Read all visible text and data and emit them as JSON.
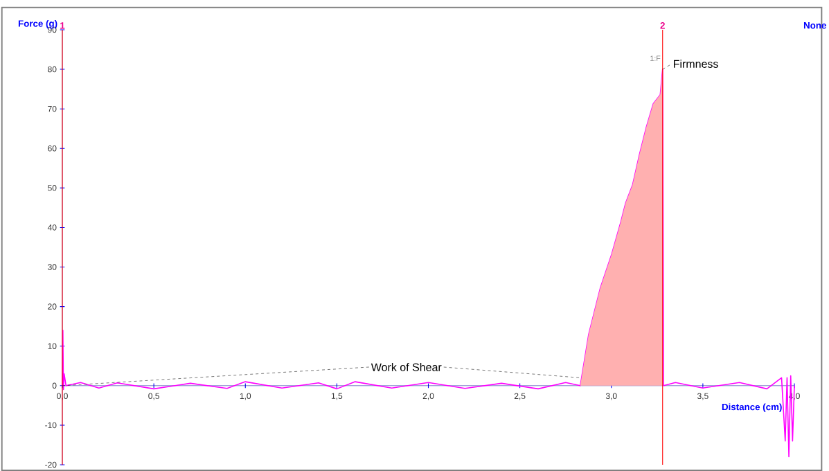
{
  "chart_data": {
    "type": "line",
    "xlabel": "Distance (cm)",
    "ylabel": "Force (g)",
    "xlim": [
      0,
      4.0
    ],
    "ylim": [
      -20,
      90
    ],
    "xticks": [
      {
        "value": 0,
        "label": "0,0"
      },
      {
        "value": 0.5,
        "label": "0,5"
      },
      {
        "value": 1.0,
        "label": "1,0"
      },
      {
        "value": 1.5,
        "label": "1,5"
      },
      {
        "value": 2.0,
        "label": "2,0"
      },
      {
        "value": 2.5,
        "label": "2,5"
      },
      {
        "value": 3.0,
        "label": "3,0"
      },
      {
        "value": 3.5,
        "label": "3,5"
      },
      {
        "value": 4.0,
        "label": "4,0"
      }
    ],
    "yticks": [
      -20,
      -10,
      0,
      10,
      20,
      30,
      40,
      50,
      60,
      70,
      80,
      90
    ],
    "series": [
      {
        "color": "#ff00ff",
        "x": [
          0,
          0.003,
          0.006,
          0.01,
          0.02,
          0.1,
          0.2,
          0.3,
          0.5,
          0.7,
          0.9,
          1.0,
          1.2,
          1.4,
          1.5,
          1.6,
          1.8,
          2.0,
          2.2,
          2.4,
          2.6,
          2.75,
          2.83,
          2.876,
          2.939,
          3.002,
          3.052,
          3.078,
          3.116,
          3.153,
          3.191,
          3.229,
          3.267,
          3.28,
          3.285,
          3.35,
          3.5,
          3.7,
          3.85,
          3.93,
          3.95,
          3.96,
          3.97,
          3.98,
          3.99,
          4.0
        ],
        "values": [
          0,
          14,
          -1,
          3,
          0,
          0.8,
          -0.6,
          0.7,
          -0.8,
          0.6,
          -0.7,
          1,
          -0.6,
          0.7,
          -0.8,
          1,
          -0.6,
          0.8,
          -0.7,
          0.6,
          -0.8,
          0.8,
          0,
          13,
          24.6,
          33.3,
          41.5,
          46.2,
          50.8,
          58.4,
          65.4,
          71.3,
          73.6,
          80,
          0,
          0.8,
          -0.6,
          0.8,
          -0.8,
          2,
          -14,
          2,
          -18,
          2.5,
          -14,
          0
        ]
      },
      {
        "type": "area",
        "color": "#ffb0b0",
        "x": [
          2.83,
          2.876,
          2.939,
          3.002,
          3.052,
          3.078,
          3.116,
          3.153,
          3.191,
          3.229,
          3.267,
          3.28
        ],
        "values": [
          0,
          13,
          24.6,
          33.3,
          41.5,
          46.2,
          50.8,
          58.4,
          65.4,
          71.3,
          73.6,
          80
        ]
      }
    ],
    "ref_lines": [
      {
        "axis": "x",
        "value": 0,
        "color": "#ff0000"
      },
      {
        "axis": "x",
        "value": 3.28,
        "color": "#ff0000"
      }
    ],
    "annotations": [
      {
        "text": "Work of Shear",
        "x": 2.83,
        "y": 2
      },
      {
        "text": "Firmness",
        "x": 3.28,
        "y": 80
      },
      {
        "text": "1:F",
        "x": 3.28,
        "y": 80
      },
      "None",
      {
        "text": "1",
        "x": 0,
        "y": 90
      },
      {
        "text": "2",
        "x": 3.28,
        "y": 90
      }
    ]
  }
}
